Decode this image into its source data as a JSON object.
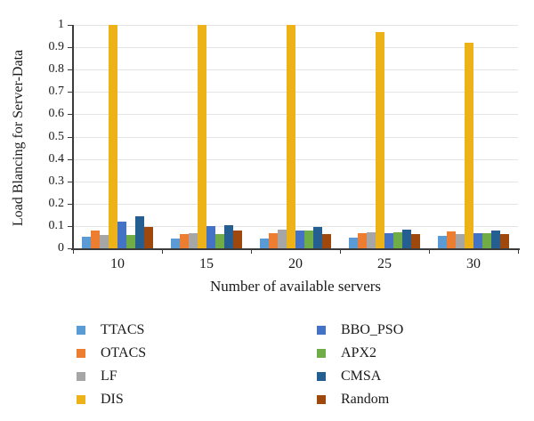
{
  "chart_data": {
    "type": "bar",
    "title": "",
    "xlabel": "Number of available servers",
    "ylabel": "Load Blancing for Server-Data",
    "categories": [
      "10",
      "15",
      "20",
      "25",
      "30"
    ],
    "ylim": [
      0,
      1
    ],
    "ytick_step": 0.1,
    "ytick_labels": [
      "0",
      "0.1",
      "0.2",
      "0.3",
      "0.4",
      "0.5",
      "0.6",
      "0.7",
      "0.8",
      "0.9",
      "1"
    ],
    "grid": "horizontal",
    "legend_position": "bottom",
    "legend_columns": [
      [
        "TTACS",
        "OTACS",
        "LF",
        "DIS"
      ],
      [
        "BBO_PSO",
        "APX2",
        "CMSA",
        "Random"
      ]
    ],
    "series": [
      {
        "name": "TTACS",
        "color": "#5B9BD5",
        "values": [
          0.05,
          0.043,
          0.044,
          0.049,
          0.056
        ]
      },
      {
        "name": "OTACS",
        "color": "#ED7D31",
        "values": [
          0.08,
          0.062,
          0.068,
          0.067,
          0.075
        ]
      },
      {
        "name": "LF",
        "color": "#A6A6A6",
        "values": [
          0.06,
          0.066,
          0.082,
          0.073,
          0.063
        ]
      },
      {
        "name": "DIS",
        "color": "#EEB219",
        "values": [
          1.0,
          1.0,
          1.0,
          0.97,
          0.92
        ]
      },
      {
        "name": "BBO_PSO",
        "color": "#4472C4",
        "values": [
          0.12,
          0.1,
          0.079,
          0.068,
          0.066
        ]
      },
      {
        "name": "APX2",
        "color": "#70AD47",
        "values": [
          0.06,
          0.065,
          0.081,
          0.07,
          0.066
        ]
      },
      {
        "name": "CMSA",
        "color": "#255E91",
        "values": [
          0.145,
          0.105,
          0.095,
          0.083,
          0.078
        ]
      },
      {
        "name": "Random",
        "color": "#9E480E",
        "values": [
          0.095,
          0.08,
          0.063,
          0.062,
          0.063
        ]
      }
    ]
  },
  "axes": {
    "grid_color": "#e4e4e4",
    "axis_color": "#3b3b3b",
    "background": "#ffffff"
  }
}
